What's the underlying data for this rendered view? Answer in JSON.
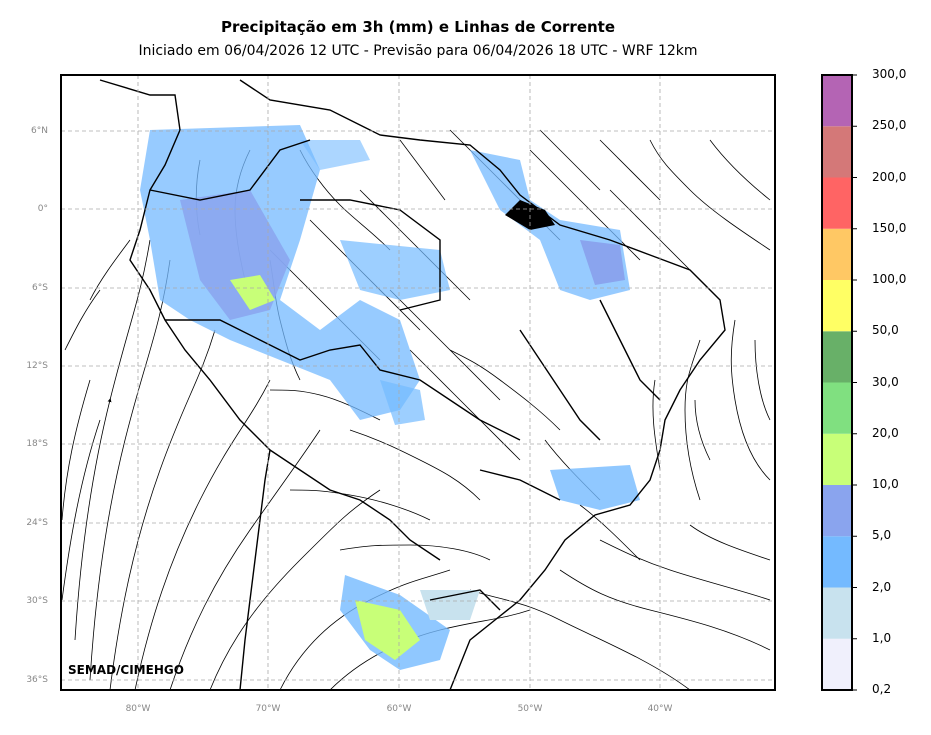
{
  "title": "Precipitação em 3h (mm) e Linhas de Corrente",
  "subtitle": "Iniciado em 06/04/2026 12 UTC - Previsão para 06/04/2026 18 UTC - WRF 12km",
  "credit": "SEMAD/CIMEHGO",
  "lat_ticks": [
    "6°N",
    "0°",
    "6°S",
    "12°S",
    "18°S",
    "24°S",
    "30°S",
    "36°S"
  ],
  "lon_ticks": [
    "80°W",
    "70°W",
    "60°W",
    "50°W",
    "40°W"
  ],
  "colorbar": {
    "labels": [
      "0,2",
      "1,0",
      "2,0",
      "5,0",
      "10,0",
      "20,0",
      "30,0",
      "50,0",
      "100,0",
      "150,0",
      "200,0",
      "250,0",
      "300,0"
    ],
    "colors": [
      "#f0f0fc",
      "#c8e2ee",
      "#74baff",
      "#8aa4ee",
      "#c8ff78",
      "#80e080",
      "#68b068",
      "#ffff64",
      "#ffc864",
      "#ff6464",
      "#d47878",
      "#b464b4"
    ]
  }
}
